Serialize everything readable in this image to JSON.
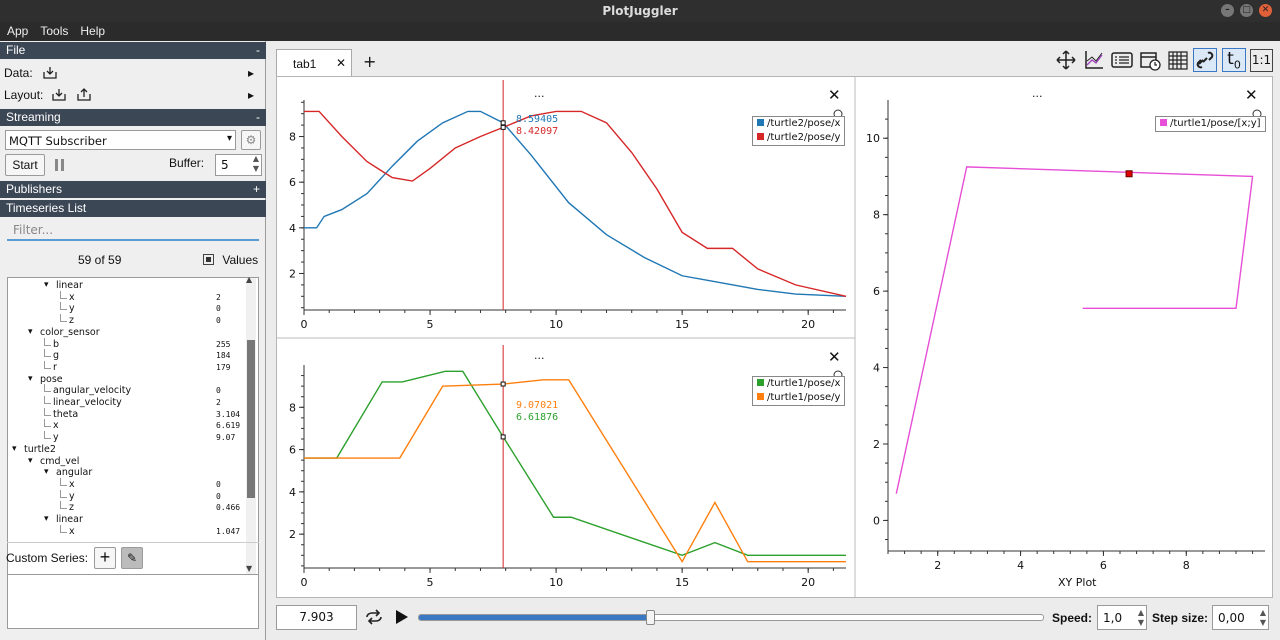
{
  "window": {
    "title": "PlotJuggler"
  },
  "menu": [
    "App",
    "Tools",
    "Help"
  ],
  "sidebar": {
    "file": {
      "title": "File",
      "data_label": "Data:",
      "layout_label": "Layout:"
    },
    "streaming": {
      "title": "Streaming",
      "source": "MQTT Subscriber",
      "start_label": "Start",
      "buffer_label": "Buffer:",
      "buffer_value": "5"
    },
    "publishers": {
      "title": "Publishers"
    },
    "timeseries": {
      "title": "Timeseries List",
      "filter_placeholder": "Filter...",
      "count": "59 of 59",
      "values_label": "Values"
    },
    "tree": [
      {
        "label": "linear",
        "depth": 2,
        "value": "",
        "expander": true
      },
      {
        "label": "x",
        "depth": 3,
        "value": "2"
      },
      {
        "label": "y",
        "depth": 3,
        "value": "0"
      },
      {
        "label": "z",
        "depth": 3,
        "value": "0"
      },
      {
        "label": "color_sensor",
        "depth": 1,
        "value": "",
        "expander": true
      },
      {
        "label": "b",
        "depth": 2,
        "value": "255"
      },
      {
        "label": "g",
        "depth": 2,
        "value": "184"
      },
      {
        "label": "r",
        "depth": 2,
        "value": "179"
      },
      {
        "label": "pose",
        "depth": 1,
        "value": "",
        "expander": true
      },
      {
        "label": "angular_velocity",
        "depth": 2,
        "value": "0"
      },
      {
        "label": "linear_velocity",
        "depth": 2,
        "value": "2"
      },
      {
        "label": "theta",
        "depth": 2,
        "value": "3.104"
      },
      {
        "label": "x",
        "depth": 2,
        "value": "6.619"
      },
      {
        "label": "y",
        "depth": 2,
        "value": "9.07"
      },
      {
        "label": "turtle2",
        "depth": 0,
        "value": "",
        "expander": true
      },
      {
        "label": "cmd_vel",
        "depth": 1,
        "value": "",
        "expander": true
      },
      {
        "label": "angular",
        "depth": 2,
        "value": "",
        "expander": true
      },
      {
        "label": "x",
        "depth": 3,
        "value": "0"
      },
      {
        "label": "y",
        "depth": 3,
        "value": "0"
      },
      {
        "label": "z",
        "depth": 3,
        "value": "0.466"
      },
      {
        "label": "linear",
        "depth": 2,
        "value": "",
        "expander": true
      },
      {
        "label": "x",
        "depth": 3,
        "value": "1.047"
      }
    ],
    "custom_series": {
      "label": "Custom Series:"
    }
  },
  "tabs": [
    {
      "label": "tab1",
      "active": true
    }
  ],
  "toolbar_icons": [
    "move-icon",
    "plot-style-icon",
    "legend-icon",
    "timer-icon",
    "grid-icon",
    "link-icon",
    "time-offset-icon",
    "ratio-icon"
  ],
  "toolbar_text": {
    "t0": "t",
    "t0_sub": "0",
    "ratio": "1:1"
  },
  "plots": {
    "top": {
      "menu": "...",
      "tracker_values": [
        "8.59405",
        "8.42097"
      ]
    },
    "bottom": {
      "menu": "...",
      "tracker_values": [
        "9.07021",
        "6.61876"
      ]
    },
    "xy": {
      "menu": "...",
      "xlabel": "XY Plot"
    }
  },
  "chart_data": [
    {
      "type": "line",
      "xlim": [
        0,
        21.5
      ],
      "ylim": [
        0.4,
        9.6
      ],
      "xticks": [
        0,
        5,
        10,
        15,
        20
      ],
      "yticks": [
        2,
        4,
        6,
        8
      ],
      "legend": "top-right",
      "cursor_x": 7.9,
      "series": [
        {
          "name": "/turtle2/pose/x",
          "color": "#1f77b4",
          "x": [
            0,
            0.5,
            0.8,
            1.5,
            2.5,
            3.5,
            4.5,
            5.5,
            6.5,
            7.0,
            7.9,
            9.0,
            10.5,
            12.0,
            13.5,
            15.0,
            16.5,
            18.0,
            19.5,
            21.5
          ],
          "y": [
            4.0,
            4.0,
            4.5,
            4.8,
            5.5,
            6.7,
            7.8,
            8.6,
            9.1,
            9.1,
            8.6,
            7.2,
            5.1,
            3.7,
            2.7,
            1.9,
            1.6,
            1.3,
            1.1,
            1.0
          ]
        },
        {
          "name": "/turtle2/pose/y",
          "color": "#d62728",
          "x": [
            0,
            0.6,
            1.5,
            2.5,
            3.5,
            4.3,
            5.0,
            6.0,
            7.0,
            7.9,
            9.0,
            10.0,
            11.0,
            12.0,
            13.0,
            14.0,
            15.0,
            16.0,
            17.0,
            18.0,
            19.5,
            21.5
          ],
          "y": [
            9.1,
            9.1,
            8.0,
            6.9,
            6.2,
            6.05,
            6.6,
            7.5,
            8.0,
            8.4,
            8.9,
            9.1,
            9.1,
            8.6,
            7.3,
            5.7,
            3.8,
            3.1,
            3.1,
            2.2,
            1.5,
            1.0
          ]
        }
      ]
    },
    {
      "type": "line",
      "xlim": [
        0,
        21.5
      ],
      "ylim": [
        0.4,
        10.0
      ],
      "xticks": [
        0,
        5,
        10,
        15,
        20
      ],
      "yticks": [
        2,
        4,
        6,
        8
      ],
      "legend": "top-right",
      "cursor_x": 7.9,
      "series": [
        {
          "name": "/turtle1/pose/x",
          "color": "#2ca02c",
          "x": [
            0,
            1.3,
            3.1,
            3.9,
            5.6,
            6.3,
            7.9,
            9.9,
            10.6,
            15.0,
            16.3,
            17.6,
            21.5
          ],
          "y": [
            5.6,
            5.6,
            9.2,
            9.2,
            9.7,
            9.7,
            6.6,
            2.8,
            2.8,
            1.0,
            1.6,
            1.0,
            1.0
          ]
        },
        {
          "name": "/turtle1/pose/y",
          "color": "#ff7f0e",
          "x": [
            0,
            3.8,
            5.5,
            7.9,
            9.5,
            10.5,
            15.0,
            16.3,
            17.6,
            21.5
          ],
          "y": [
            5.6,
            5.6,
            9.0,
            9.1,
            9.3,
            9.3,
            0.7,
            3.5,
            0.7,
            0.7
          ]
        }
      ]
    },
    {
      "type": "scatter",
      "xlim": [
        0.8,
        9.9
      ],
      "ylim": [
        -0.8,
        11.0
      ],
      "xticks": [
        2,
        4,
        6,
        8
      ],
      "yticks": [
        0,
        2,
        4,
        6,
        8,
        10
      ],
      "legend": "top-right",
      "xlabel": "XY Plot",
      "series": [
        {
          "name": "/turtle1/pose/[x;y]",
          "color": "#e64fd6",
          "x": [
            5.5,
            9.2,
            9.6,
            2.7,
            1.0
          ],
          "y": [
            5.55,
            5.55,
            9.0,
            9.25,
            0.7
          ]
        }
      ],
      "marker": {
        "x": 6.619,
        "y": 9.07,
        "color": "#e00000"
      }
    }
  ],
  "bottom": {
    "time": "7.903",
    "speed_label": "Speed:",
    "speed_value": "1,0",
    "step_label": "Step size:",
    "step_value": "0,00",
    "progress": 0.37
  }
}
